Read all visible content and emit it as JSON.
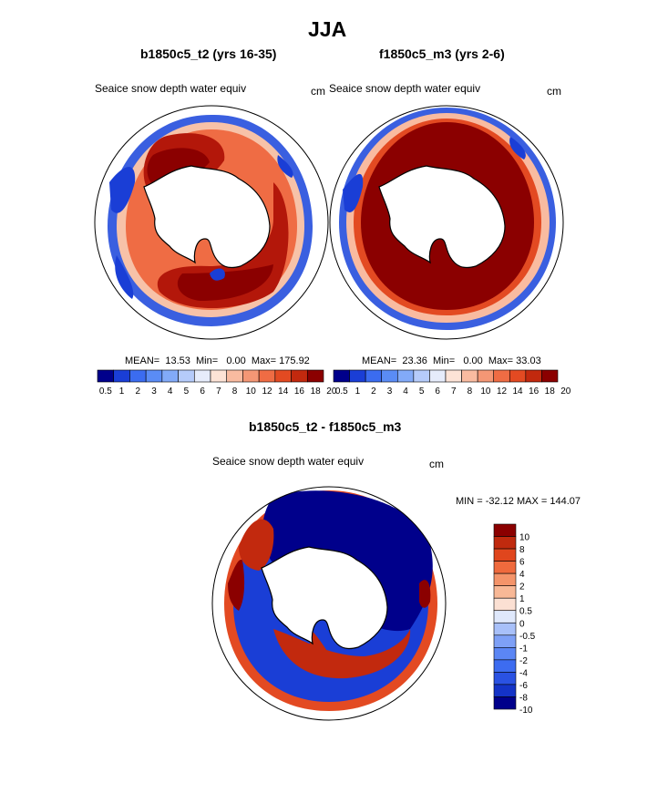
{
  "figure": {
    "title": "JJA",
    "palette": [
      "#00008b",
      "#1a3ed6",
      "#3b6cf0",
      "#5a8cf5",
      "#82aaf8",
      "#b5cbfa",
      "#e6ecfb",
      "#fde3d6",
      "#f9bba0",
      "#f49775",
      "#ef6c44",
      "#e34a22",
      "#c2290e",
      "#8b0000"
    ],
    "diff_palette": [
      "#00008b",
      "#1433c7",
      "#2a52e3",
      "#3d6cf0",
      "#5b86f4",
      "#7ea0f6",
      "#a8c0f9",
      "#dfe8fb",
      "#fbe0d3",
      "#f8b896",
      "#f4946a",
      "#ef6a3d",
      "#e0461d",
      "#c02a0e",
      "#8b0000"
    ]
  },
  "chart_data": [
    {
      "type": "heatmap",
      "title": "b1850c5_t2 (yrs 16-35)",
      "variable": "Seaice snow depth water equiv",
      "units": "cm",
      "stats": {
        "mean_label": "MEAN=",
        "mean": "13.53",
        "min_label": "Min=",
        "min": "0.00",
        "max_label": "Max=",
        "max": "175.92"
      },
      "colorbar": {
        "orientation": "horizontal",
        "levels": [
          "0.5",
          "1",
          "2",
          "3",
          "4",
          "5",
          "6",
          "7",
          "8",
          "10",
          "12",
          "14",
          "16",
          "18",
          "20"
        ]
      }
    },
    {
      "type": "heatmap",
      "title": "f1850c5_m3 (yrs 2-6)",
      "variable": "Seaice snow depth water equiv",
      "units": "cm",
      "stats": {
        "mean_label": "MEAN=",
        "mean": "23.36",
        "min_label": "Min=",
        "min": "0.00",
        "max_label": "Max=",
        "max": "33.03"
      },
      "colorbar": {
        "orientation": "horizontal",
        "levels": [
          "0.5",
          "1",
          "2",
          "3",
          "4",
          "5",
          "6",
          "7",
          "8",
          "10",
          "12",
          "14",
          "16",
          "18",
          "20"
        ]
      }
    },
    {
      "type": "heatmap",
      "title": "b1850c5_t2 - f1850c5_m3",
      "variable": "Seaice snow depth water equiv",
      "units": "cm",
      "stats": {
        "min_label": "MIN =",
        "min": "-32.12",
        "max_label": "MAX =",
        "max": "144.07"
      },
      "colorbar": {
        "orientation": "vertical",
        "levels": [
          "10",
          "8",
          "6",
          "4",
          "2",
          "1",
          "0.5",
          "0",
          "-0.5",
          "-1",
          "-2",
          "-4",
          "-6",
          "-8",
          "-10"
        ]
      }
    }
  ]
}
